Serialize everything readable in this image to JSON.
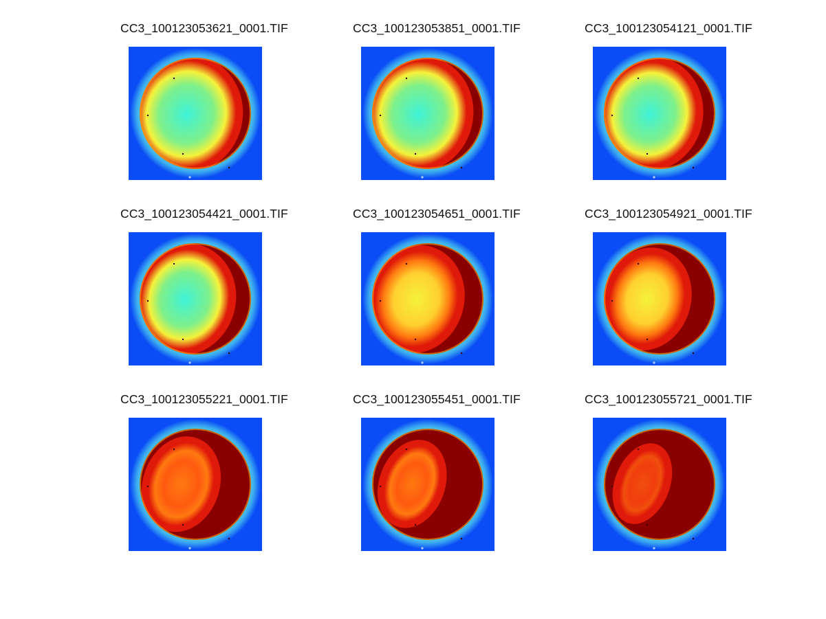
{
  "figure": {
    "panels": [
      {
        "title": "CC3_100123053621_0001.TIF",
        "dark_fraction": 0.16
      },
      {
        "title": "CC3_100123053851_0001.TIF",
        "dark_fraction": 0.2
      },
      {
        "title": "CC3_100123054121_0001.TIF",
        "dark_fraction": 0.24
      },
      {
        "title": "CC3_100123054421_0001.TIF",
        "dark_fraction": 0.3
      },
      {
        "title": "CC3_100123054651_0001.TIF",
        "dark_fraction": 0.38
      },
      {
        "title": "CC3_100123054921_0001.TIF",
        "dark_fraction": 0.48
      },
      {
        "title": "CC3_100123055221_0001.TIF",
        "dark_fraction": 0.62
      },
      {
        "title": "CC3_100123055451_0001.TIF",
        "dark_fraction": 0.76
      },
      {
        "title": "CC3_100123055721_0001.TIF",
        "dark_fraction": 0.9
      }
    ],
    "colors": {
      "background": "#0a4cf5",
      "rim_cyan": "#5fe6e0",
      "center_cyan": "#3ef2d8",
      "yellow": "#f5f23a",
      "orange": "#ff7a10",
      "red": "#e01a0a",
      "dark_red": "#8a0000"
    }
  }
}
